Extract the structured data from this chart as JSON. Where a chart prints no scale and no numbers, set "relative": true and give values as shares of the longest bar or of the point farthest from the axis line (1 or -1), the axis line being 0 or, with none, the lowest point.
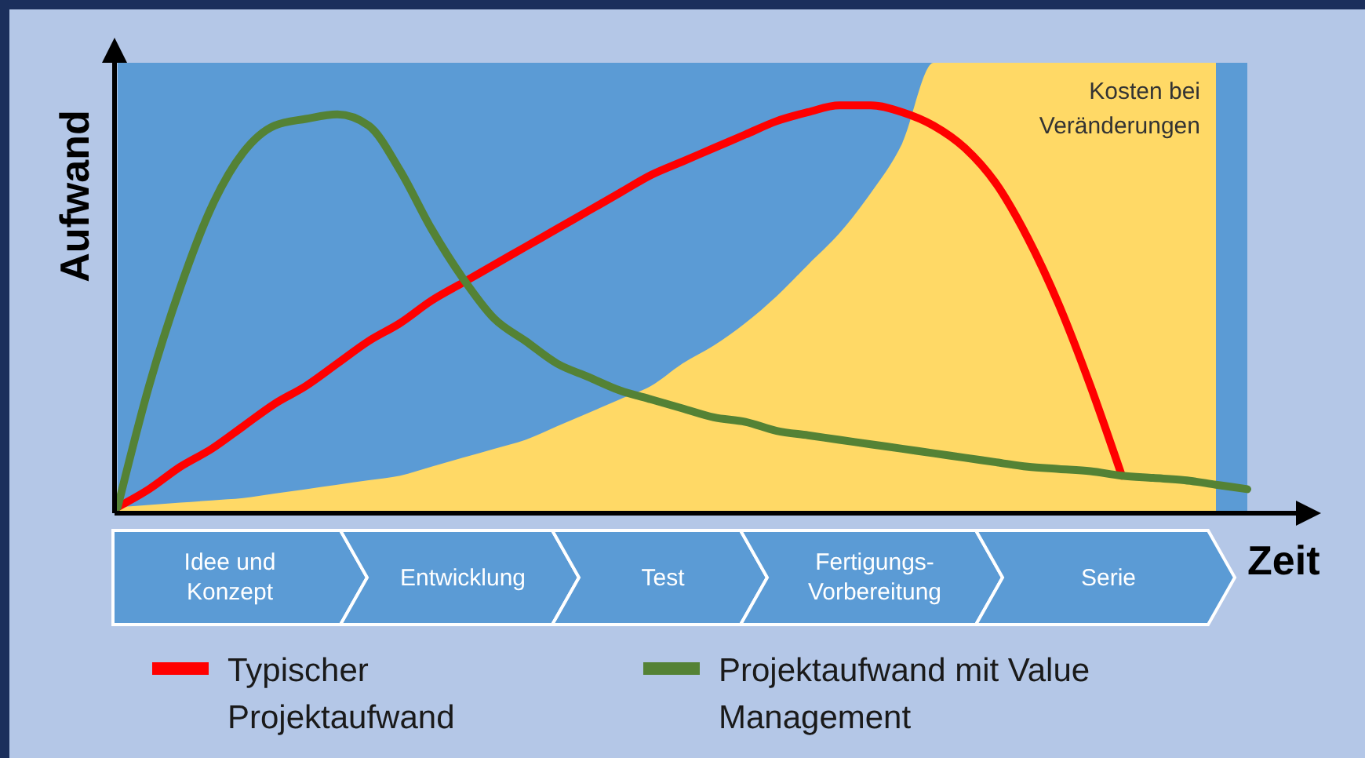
{
  "chart_data": {
    "type": "line",
    "relative": true,
    "xlabel": "Zeit",
    "ylabel": "Aufwand",
    "legend": "bottom",
    "categories": [
      null,
      null,
      null,
      null,
      null,
      null,
      null,
      null,
      null,
      null,
      null,
      null,
      null,
      null,
      null,
      null,
      null,
      null,
      null,
      null,
      null,
      null,
      null,
      null,
      null,
      null,
      null,
      null,
      null,
      null,
      null,
      null,
      null,
      null,
      null,
      null,
      null
    ],
    "annotations": [
      "Idee und Konzept",
      "Entwicklung",
      "Test",
      "Fertigungs-Vorbereitung",
      "Serie"
    ],
    "series": [
      {
        "name": "Kosten bei Veränderungen",
        "type": "area",
        "color": "#ffd966",
        "values": [
          0.01,
          0.015,
          0.02,
          0.025,
          0.03,
          0.04,
          0.05,
          0.06,
          0.07,
          0.08,
          0.1,
          0.12,
          0.14,
          0.16,
          0.19,
          0.22,
          0.25,
          0.28,
          0.33,
          0.37,
          0.42,
          0.48,
          0.55,
          0.62,
          0.71,
          0.82,
          1,
          1,
          1,
          1,
          1,
          1,
          1,
          1,
          1,
          1,
          null
        ]
      },
      {
        "name": "Typischer Projektaufwand",
        "color": "#ff0000",
        "values": [
          0.01,
          0.05,
          0.1,
          0.14,
          0.19,
          0.24,
          0.28,
          0.33,
          0.38,
          0.42,
          0.47,
          0.51,
          0.55,
          0.59,
          0.63,
          0.67,
          0.71,
          0.75,
          0.78,
          0.81,
          0.84,
          0.87,
          0.89,
          0.905,
          0.905,
          0.89,
          0.86,
          0.81,
          0.73,
          0.61,
          0.46,
          0.28,
          0.08,
          null,
          null,
          null,
          null
        ]
      },
      {
        "name": "Projektaufwand mit Value Management",
        "color": "#548235",
        "values": [
          0.01,
          0.28,
          0.5,
          0.68,
          0.8,
          0.86,
          0.875,
          0.885,
          0.86,
          0.76,
          0.63,
          0.52,
          0.43,
          0.38,
          0.33,
          0.3,
          0.27,
          0.25,
          0.23,
          0.21,
          0.2,
          0.18,
          0.17,
          0.16,
          0.15,
          0.14,
          0.13,
          0.12,
          0.11,
          0.1,
          0.095,
          0.09,
          0.08,
          0.075,
          0.07,
          0.06,
          0.05
        ]
      }
    ]
  }
}
